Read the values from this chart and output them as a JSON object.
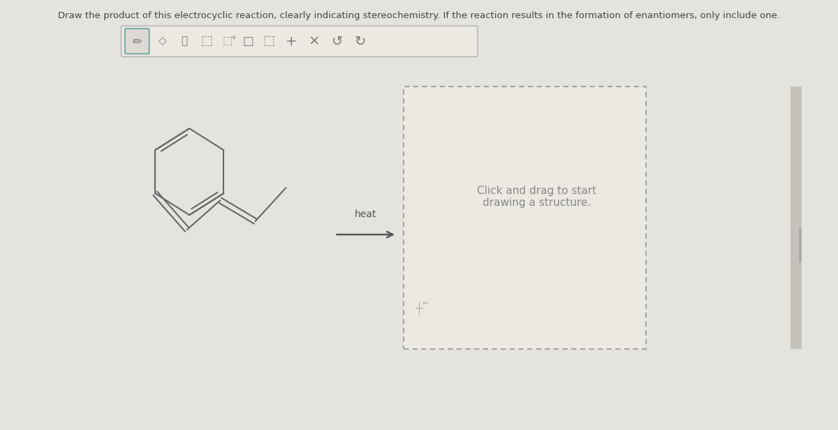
{
  "bg_color": "#e5e3de",
  "title_text": "Draw the product of this electrocyclic reaction, clearly indicating stereochemistry. If the reaction results in the formation of enantiomers, only include one.",
  "title_fontsize": 9.5,
  "title_color": "#444444",
  "heat_label": "heat",
  "heat_label_fontsize": 10,
  "arrow_color": "#555555",
  "molecule_color": "#666666",
  "molecule_linewidth": 1.5,
  "dashed_box_color": "#999999",
  "click_text": "Click and drag to start\ndrawing a structure.",
  "click_text_fontsize": 11,
  "click_text_color": "#888888"
}
